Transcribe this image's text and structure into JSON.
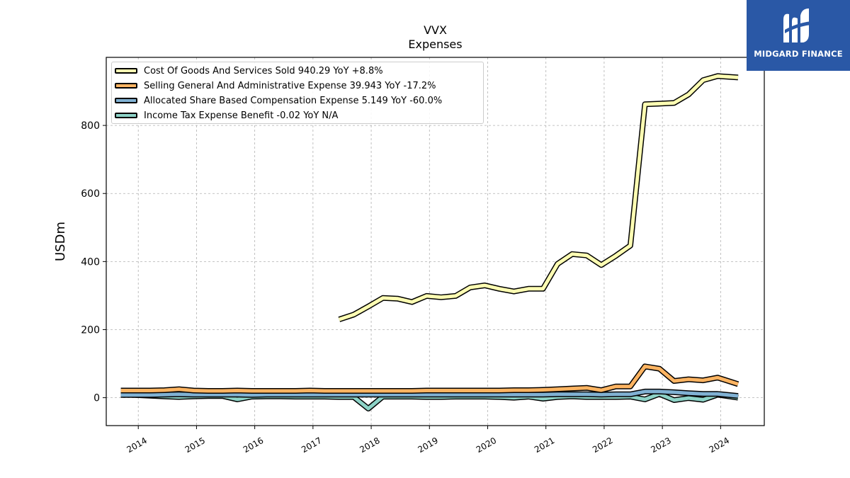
{
  "brand": {
    "name": "MIDGARD FINANCE",
    "logo_icon": "stylized-m-logo-icon",
    "color": "#2a58a6"
  },
  "chart_data": {
    "type": "line",
    "title": "VVX",
    "subtitle": "Expenses",
    "xlabel": "",
    "ylabel": "USDm",
    "xlim": [
      2013.45,
      2024.75
    ],
    "ylim": [
      -82,
      1000
    ],
    "x_ticks": [
      "2014",
      "2015",
      "2016",
      "2017",
      "2018",
      "2019",
      "2020",
      "2021",
      "2022",
      "2023",
      "2024"
    ],
    "y_ticks": [
      "0",
      "200",
      "400",
      "600",
      "800"
    ],
    "grid": true,
    "legend_position": "top-left",
    "series": [
      {
        "name": "Cost Of Goods And Services Sold  940.29 YoY +8.8%",
        "color": "#ffffb3",
        "x": [
          2017.45,
          2017.7,
          2017.95,
          2018.2,
          2018.45,
          2018.7,
          2018.95,
          2019.2,
          2019.45,
          2019.7,
          2019.95,
          2020.2,
          2020.45,
          2020.7,
          2020.95,
          2021.2,
          2021.45,
          2021.7,
          2021.95,
          2022.2,
          2022.45,
          2022.7,
          2022.95,
          2023.2,
          2023.45,
          2023.7,
          2023.95,
          2024.3
        ],
        "values": [
          230,
          244,
          268,
          293,
          291,
          281,
          299,
          295,
          299,
          324,
          330,
          320,
          312,
          320,
          320,
          393,
          422,
          418,
          390,
          417,
          447,
          862,
          864,
          866,
          891,
          933,
          945,
          941
        ]
      },
      {
        "name": "Selling General And Administrative Expense  39.943 YoY -17.2%",
        "color": "#fdb462",
        "x": [
          2013.7,
          2013.95,
          2014.2,
          2014.45,
          2014.7,
          2014.95,
          2015.2,
          2015.45,
          2015.7,
          2015.95,
          2016.2,
          2016.45,
          2016.7,
          2016.95,
          2017.2,
          2017.45,
          2017.7,
          2017.95,
          2018.2,
          2018.45,
          2018.7,
          2018.95,
          2019.2,
          2019.45,
          2019.7,
          2019.95,
          2020.2,
          2020.45,
          2020.7,
          2020.95,
          2021.2,
          2021.45,
          2021.7,
          2021.95,
          2022.2,
          2022.45,
          2022.7,
          2022.95,
          2023.2,
          2023.45,
          2023.7,
          2023.95,
          2024.3
        ],
        "values": [
          21,
          21,
          21,
          22,
          25,
          21,
          20,
          20,
          21,
          20,
          20,
          20,
          20,
          21,
          20,
          20,
          20,
          20,
          20,
          20,
          20,
          21,
          21,
          21,
          21,
          21,
          21,
          22,
          22,
          23,
          25,
          27,
          29,
          22,
          33,
          33,
          92,
          85,
          49,
          54,
          51,
          59,
          39.9
        ]
      },
      {
        "name": "Allocated Share Based Compensation Expense  5.149 YoY -60.0%",
        "color": "#80b1d3",
        "x": [
          2013.7,
          2013.95,
          2014.2,
          2014.45,
          2014.7,
          2014.95,
          2015.2,
          2015.45,
          2015.7,
          2015.95,
          2016.2,
          2016.45,
          2016.7,
          2016.95,
          2017.2,
          2017.45,
          2017.7,
          2017.95,
          2018.2,
          2018.45,
          2018.7,
          2018.95,
          2019.2,
          2019.45,
          2019.7,
          2019.95,
          2020.2,
          2020.45,
          2020.7,
          2020.95,
          2021.2,
          2021.45,
          2021.7,
          2021.95,
          2022.2,
          2022.45,
          2022.7,
          2022.95,
          2023.2,
          2023.45,
          2023.7,
          2023.95,
          2024.3
        ],
        "values": [
          8,
          8,
          8,
          9,
          10,
          9,
          9,
          9,
          9,
          8,
          9,
          9,
          9,
          9,
          9,
          9,
          9,
          9,
          9,
          9,
          9,
          9,
          9,
          9,
          9,
          9,
          9,
          9,
          9,
          9,
          10,
          10,
          10,
          9,
          10,
          10,
          18,
          18,
          16,
          13,
          11,
          11,
          5.1
        ]
      },
      {
        "name": "Income Tax Expense Benefit  -0.02 YoY N/A",
        "color": "#8dd3c7",
        "x": [
          2013.7,
          2013.95,
          2014.2,
          2014.45,
          2014.7,
          2014.95,
          2015.2,
          2015.45,
          2015.7,
          2015.95,
          2016.2,
          2016.45,
          2016.7,
          2016.95,
          2017.2,
          2017.45,
          2017.7,
          2017.95,
          2018.2,
          2018.45,
          2018.7,
          2018.95,
          2019.2,
          2019.45,
          2019.7,
          2019.95,
          2020.2,
          2020.45,
          2020.7,
          2020.95,
          2021.2,
          2021.45,
          2021.7,
          2021.95,
          2022.2,
          2022.45,
          2022.7,
          2022.95,
          2023.2,
          2023.45,
          2023.7,
          2023.95,
          2024.3
        ],
        "values": [
          10,
          8,
          6,
          4,
          2,
          4,
          5,
          5,
          -5,
          3,
          4,
          4,
          3,
          3,
          3,
          2,
          2,
          -32,
          3,
          3,
          3,
          2,
          2,
          3,
          3,
          3,
          2,
          0,
          3,
          -3,
          2,
          4,
          2,
          2,
          2,
          3,
          -5,
          11,
          -7,
          -1,
          -6,
          9,
          -0.02
        ]
      }
    ]
  }
}
